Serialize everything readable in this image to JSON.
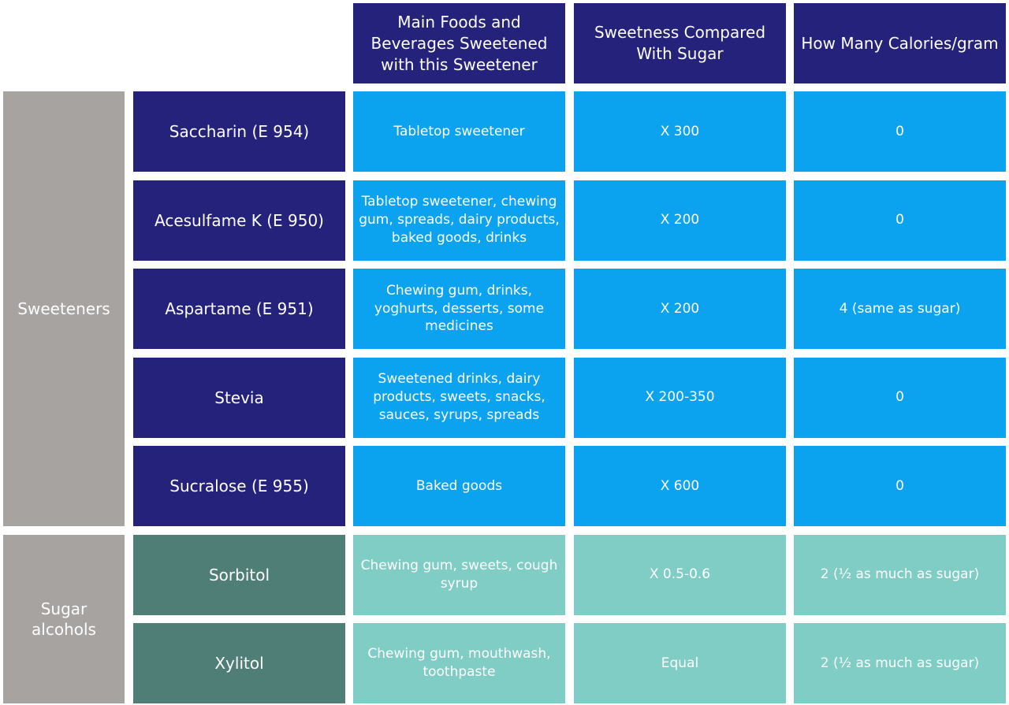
{
  "header": {
    "columns": [
      "Main Foods and Beverages Sweetened with this Sweetener",
      "Sweetness Compared With Sugar",
      "How Many Calories/gram"
    ]
  },
  "groups": [
    {
      "label": "Sweeteners",
      "rows": [
        {
          "name": "Saccharin (E 954)",
          "foods": "Tabletop sweetener",
          "sweetness": "X 300",
          "calories": "0"
        },
        {
          "name": "Acesulfame K (E 950)",
          "foods": "Tabletop sweetener, chewing gum, spreads, dairy products, baked goods, drinks",
          "sweetness": "X 200",
          "calories": "0"
        },
        {
          "name": "Aspartame (E 951)",
          "foods": "Chewing gum, drinks, yoghurts, desserts, some medicines",
          "sweetness": "X 200",
          "calories": "4 (same as sugar)"
        },
        {
          "name": "Stevia",
          "foods": "Sweetened drinks, dairy products, sweets, snacks, sauces, syrups, spreads",
          "sweetness": "X 200-350",
          "calories": "0"
        },
        {
          "name": "Sucralose (E 955)",
          "foods": "Baked goods",
          "sweetness": "X 600",
          "calories": "0"
        }
      ]
    },
    {
      "label": "Sugar alcohols",
      "rows": [
        {
          "name": "Sorbitol",
          "foods": "Chewing gum, sweets, cough syrup",
          "sweetness": "X 0.5-0.6",
          "calories": "2 (½ as much as sugar)"
        },
        {
          "name": "Xylitol",
          "foods": "Chewing gum, mouthwash, toothpaste",
          "sweetness": "Equal",
          "calories": "2 (½ as much as sugar)"
        }
      ]
    }
  ]
}
